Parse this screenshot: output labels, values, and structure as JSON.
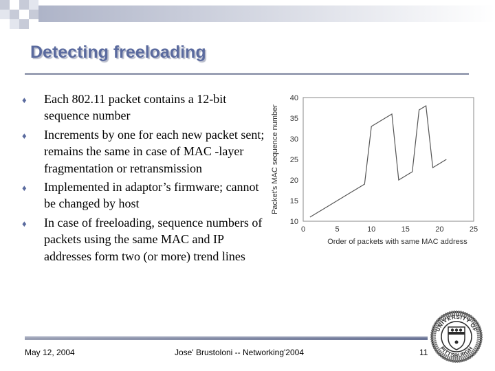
{
  "slide": {
    "title": "Detecting freeloading",
    "bullets": [
      "Each 802.11 packet contains a 12-bit sequence number",
      "Increments by one for each new packet sent; remains the same in case of MAC -layer fragmentation or retransmission",
      "Implemented in adaptor’s firmware; cannot be changed by host",
      "In case of freeloading, sequence numbers of packets using the same MAC and IP addresses form two (or more) trend lines"
    ],
    "bullet_icon": "diamond-icon",
    "accent_color": "#5a6a9e"
  },
  "chart_data": {
    "type": "line",
    "xlabel": "Order of packets with same MAC address",
    "ylabel": "Packet's MAC sequence number",
    "xlim": [
      0,
      25
    ],
    "ylim": [
      10,
      40
    ],
    "xticks": [
      0,
      5,
      10,
      15,
      20,
      25
    ],
    "yticks": [
      10,
      15,
      20,
      25,
      30,
      35,
      40
    ],
    "grid": false,
    "x": [
      1,
      2,
      3,
      4,
      5,
      6,
      7,
      8,
      9,
      10,
      11,
      12,
      13,
      14,
      15,
      16,
      17,
      18,
      19,
      20,
      21
    ],
    "y": [
      11,
      12,
      13,
      14,
      15,
      16,
      17,
      18,
      19,
      33,
      34,
      35,
      36,
      20,
      21,
      22,
      37,
      38,
      23,
      24,
      25
    ]
  },
  "footer": {
    "date": "May 12, 2004",
    "center": "Jose' Brustoloni -- Networking'2004",
    "page_number": "11"
  },
  "logo": {
    "top_text": "UNIVERSITY OF",
    "bottom_text": "PITTSBURGH"
  }
}
